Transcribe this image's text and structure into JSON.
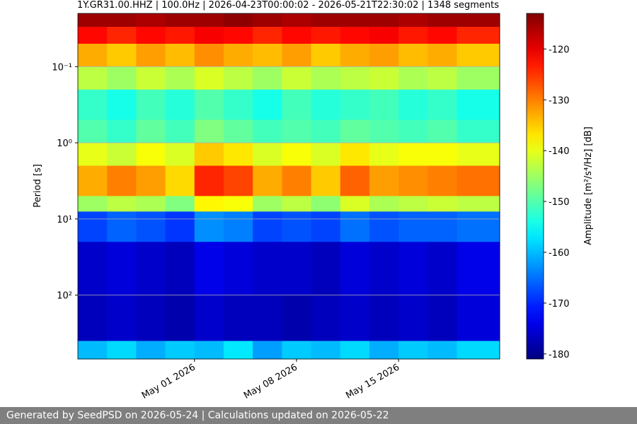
{
  "chart_data": {
    "type": "spectrogram",
    "title": "1Y.GR31.00.HHZ | 100.0Hz | 2026-04-23T00:00:02 - 2026-05-21T22:30:02 | 1348 segments",
    "ylabel": "Period [s]",
    "colorbar_label": "Amplitude [m²/s⁴/Hz] [dB]",
    "footer": "Generated by SeedPSD on 2026-05-24 | Calculations updated on 2026-05-22",
    "xlim": [
      "2026-04-23T00:00:02",
      "2026-05-21T22:30:02"
    ],
    "xticks": [
      {
        "value": "2026-05-01",
        "label": "May 01 2026"
      },
      {
        "value": "2026-05-08",
        "label": "May 08 2026"
      },
      {
        "value": "2026-05-15",
        "label": "May 15 2026"
      }
    ],
    "ylim": [
      0.02,
      690
    ],
    "yscale": "log",
    "yinverted": true,
    "yticks": [
      {
        "value": 0.1,
        "label": "10⁻¹"
      },
      {
        "value": 1,
        "label": "10⁰"
      },
      {
        "value": 10,
        "label": "10¹"
      },
      {
        "value": 100,
        "label": "10²"
      }
    ],
    "grid": true,
    "colormap": "jet",
    "clim": [
      -181,
      -113
    ],
    "cticks": [
      -180,
      -170,
      -160,
      -150,
      -140,
      -130,
      -120
    ],
    "time_bins": [
      "2026-04-23T00:00:02",
      "2026-04-25",
      "2026-04-27",
      "2026-04-29",
      "2026-05-01",
      "2026-05-03",
      "2026-05-05",
      "2026-05-07",
      "2026-05-09",
      "2026-05-11",
      "2026-05-13",
      "2026-05-15",
      "2026-05-17",
      "2026-05-19",
      "2026-05-21T22:30:02"
    ],
    "period_bins": [
      0.02,
      0.03,
      0.05,
      0.1,
      0.2,
      0.5,
      1,
      2,
      5,
      8,
      20,
      100,
      400,
      690
    ],
    "z": [
      [
        -115,
        -115,
        -116,
        -115,
        -115,
        -114,
        -115,
        -116,
        -115,
        -115,
        -115,
        -116,
        -115,
        -115
      ],
      [
        -122,
        -124,
        -122,
        -123,
        -121,
        -122,
        -124,
        -122,
        -123,
        -122,
        -121,
        -123,
        -122,
        -124
      ],
      [
        -133,
        -135,
        -132,
        -134,
        -131,
        -133,
        -134,
        -132,
        -135,
        -133,
        -132,
        -134,
        -133,
        -135
      ],
      [
        -143,
        -145,
        -142,
        -144,
        -141,
        -143,
        -145,
        -142,
        -144,
        -143,
        -142,
        -144,
        -143,
        -145
      ],
      [
        -152,
        -154,
        -151,
        -153,
        -150,
        -152,
        -154,
        -151,
        -153,
        -152,
        -151,
        -153,
        -152,
        -154
      ],
      [
        -150,
        -152,
        -149,
        -151,
        -147,
        -149,
        -151,
        -150,
        -151,
        -149,
        -150,
        -151,
        -150,
        -152
      ],
      [
        -140,
        -142,
        -139,
        -141,
        -135,
        -137,
        -141,
        -139,
        -141,
        -137,
        -140,
        -139,
        -139,
        -140
      ],
      [
        -133,
        -130,
        -132,
        -136,
        -124,
        -126,
        -133,
        -130,
        -135,
        -128,
        -132,
        -131,
        -130,
        -129
      ],
      [
        -145,
        -143,
        -144,
        -147,
        -138,
        -139,
        -145,
        -143,
        -146,
        -141,
        -144,
        -143,
        -142,
        -143
      ],
      [
        -168,
        -166,
        -167,
        -169,
        -163,
        -164,
        -168,
        -167,
        -168,
        -165,
        -167,
        -166,
        -166,
        -165
      ],
      [
        -176,
        -175,
        -176,
        -177,
        -174,
        -175,
        -176,
        -176,
        -177,
        -175,
        -176,
        -175,
        -176,
        -174
      ],
      [
        -177,
        -176,
        -177,
        -178,
        -176,
        -177,
        -177,
        -178,
        -177,
        -176,
        -177,
        -176,
        -177,
        -175
      ],
      [
        -160,
        -158,
        -161,
        -159,
        -160,
        -157,
        -162,
        -159,
        -160,
        -158,
        -161,
        -159,
        -160,
        -158
      ]
    ]
  }
}
